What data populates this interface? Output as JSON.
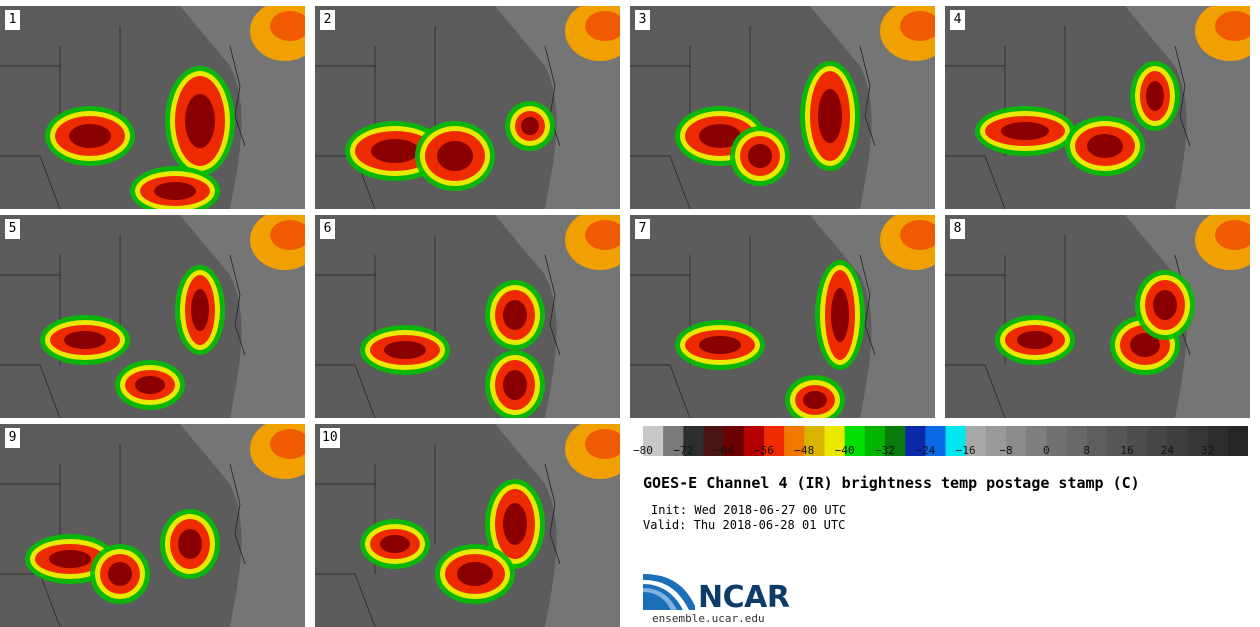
{
  "title": "GOES-E Channel 4 (IR) brightness temp postage stamp (C)",
  "init_label": "Init:",
  "init_time": "Wed 2018-06-27 00 UTC",
  "valid_label": "Valid:",
  "valid_time": "Thu 2018-06-28 01 UTC",
  "logo_text": "NCAR",
  "logo_url": "ensemble.ucar.edu",
  "panels": [
    "1",
    "2",
    "3",
    "4",
    "5",
    "6",
    "7",
    "8",
    "9",
    "10"
  ],
  "colorbar": {
    "min": -80,
    "max": 40,
    "step": 4,
    "tick_labels": [
      "−80",
      "−72",
      "−64",
      "−56",
      "−48",
      "−40",
      "−32",
      "−24",
      "−16",
      "−8",
      "0",
      "8",
      "16",
      "24",
      "32"
    ],
    "tick_values": [
      -80,
      -72,
      -64,
      -56,
      -48,
      -40,
      -32,
      -24,
      -16,
      -8,
      0,
      8,
      16,
      24,
      32
    ],
    "colors": [
      "#c8c8c8",
      "#7a7a7a",
      "#2e2e2e",
      "#4a1414",
      "#6a0000",
      "#b40000",
      "#ee2a00",
      "#f07800",
      "#d8b400",
      "#e8e800",
      "#00e000",
      "#00b400",
      "#0a7a0a",
      "#0a28a8",
      "#0a6ae6",
      "#00e6ee",
      "#a8a8a8",
      "#9a9a9a",
      "#8c8c8c",
      "#7e7e7e",
      "#727272",
      "#686868",
      "#5e5e5e",
      "#565656",
      "#4e4e4e",
      "#464646",
      "#3e3e3e",
      "#363636",
      "#2e2e2e",
      "#262626"
    ]
  }
}
